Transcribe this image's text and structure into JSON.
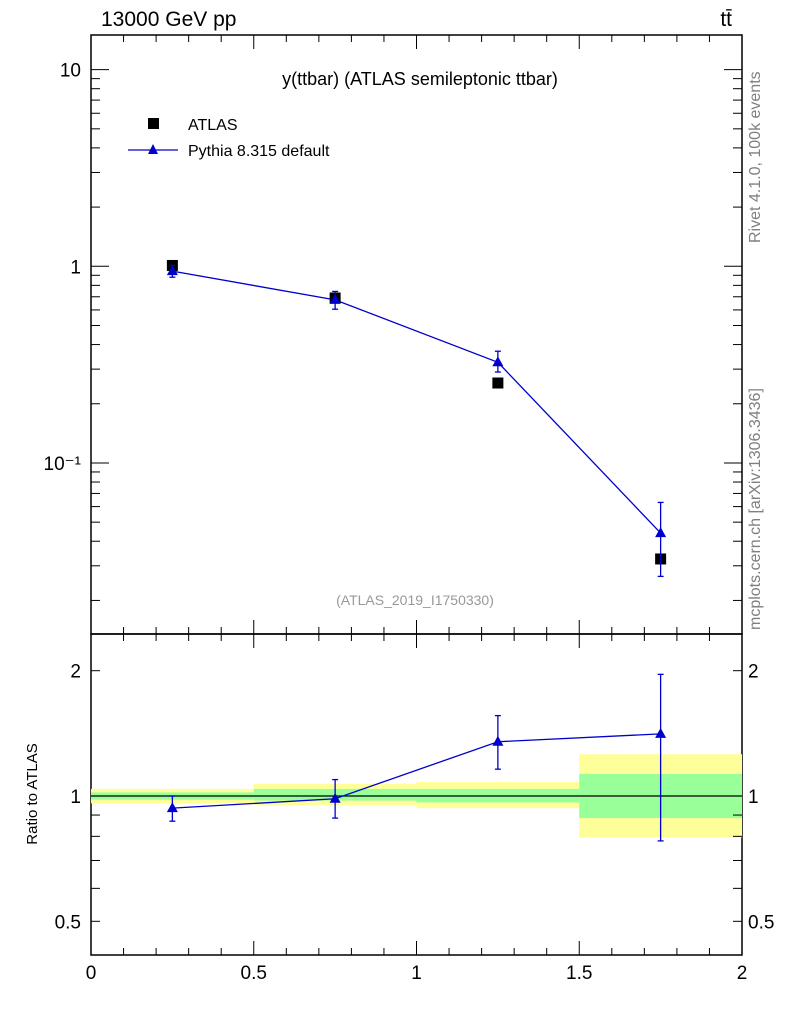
{
  "header": {
    "left": "13000 GeV pp",
    "right": "tt̄"
  },
  "side_labels": {
    "rivet": "Rivet 4.1.0,  100k events",
    "mcplots": "mcplots.cern.ch [arXiv:1306.3436]"
  },
  "colors": {
    "mc": "#0000cc",
    "data": "#000000",
    "band_inner": "#99ff99",
    "band_outer": "#ffff99",
    "watermark": "#999999"
  },
  "chart_data": [
    {
      "type": "scatter",
      "title": "y(ttbar) (ATLAS semileptonic ttbar)",
      "watermark": "(ATLAS_2019_I1750330)",
      "xlabel": "",
      "ylabel": "",
      "yscale": "log",
      "xlim": [
        0,
        2
      ],
      "ylim": [
        0.0135,
        15
      ],
      "x_ticks": [
        "0",
        "0.5",
        "1",
        "1.5",
        "2"
      ],
      "y_ticks": [
        {
          "value": 10,
          "label": "10"
        },
        {
          "value": 1,
          "label": "1"
        },
        {
          "value": 0.1,
          "label": "10⁻¹"
        }
      ],
      "legend": [
        "ATLAS",
        "Pythia 8.315 default"
      ],
      "series": [
        {
          "name": "ATLAS",
          "marker": "square",
          "x": [
            0.25,
            0.75,
            1.25,
            1.75
          ],
          "values": [
            1.01,
            0.69,
            0.255,
            0.0325
          ],
          "err_lo": [
            0.02,
            0.015,
            0.006,
            0.0015
          ],
          "err_hi": [
            0.02,
            0.015,
            0.006,
            0.0015
          ]
        },
        {
          "name": "Pythia 8.315 default",
          "marker": "triangle",
          "x": [
            0.25,
            0.75,
            1.25,
            1.75
          ],
          "values": [
            0.945,
            0.675,
            0.325,
            0.044
          ],
          "err_lo": [
            0.065,
            0.07,
            0.035,
            0.0175
          ],
          "err_hi": [
            0.065,
            0.07,
            0.045,
            0.019
          ]
        }
      ]
    },
    {
      "type": "line",
      "title": "",
      "xlabel": "",
      "ylabel": "Ratio to ATLAS",
      "yscale": "log",
      "xlim": [
        0,
        2
      ],
      "ylim": [
        0.415,
        2.45
      ],
      "x_ticks": [
        "0",
        "0.5",
        "1",
        "1.5",
        "2"
      ],
      "y_ticks": [
        {
          "value": 2,
          "label": "2"
        },
        {
          "value": 1,
          "label": "1"
        },
        {
          "value": 0.5,
          "label": "0.5"
        }
      ],
      "bands": [
        {
          "x0": 0,
          "x1": 0.5,
          "inner": [
            0.98,
            1.02
          ],
          "outer": [
            0.96,
            1.04
          ]
        },
        {
          "x0": 0.5,
          "x1": 1,
          "inner": [
            0.975,
            1.04
          ],
          "outer": [
            0.95,
            1.07
          ]
        },
        {
          "x0": 1,
          "x1": 1.5,
          "inner": [
            0.965,
            1.04
          ],
          "outer": [
            0.935,
            1.08
          ]
        },
        {
          "x0": 1.5,
          "x1": 2,
          "inner": [
            0.885,
            1.13
          ],
          "outer": [
            0.795,
            1.26
          ]
        }
      ],
      "series": [
        {
          "name": "Pythia 8.315 default",
          "x": [
            0.25,
            0.75,
            1.25,
            1.75
          ],
          "values": [
            0.935,
            0.985,
            1.35,
            1.41
          ],
          "err_lo": [
            0.065,
            0.1,
            0.19,
            0.63
          ],
          "err_hi": [
            0.065,
            0.11,
            0.21,
            0.55
          ]
        }
      ]
    }
  ]
}
